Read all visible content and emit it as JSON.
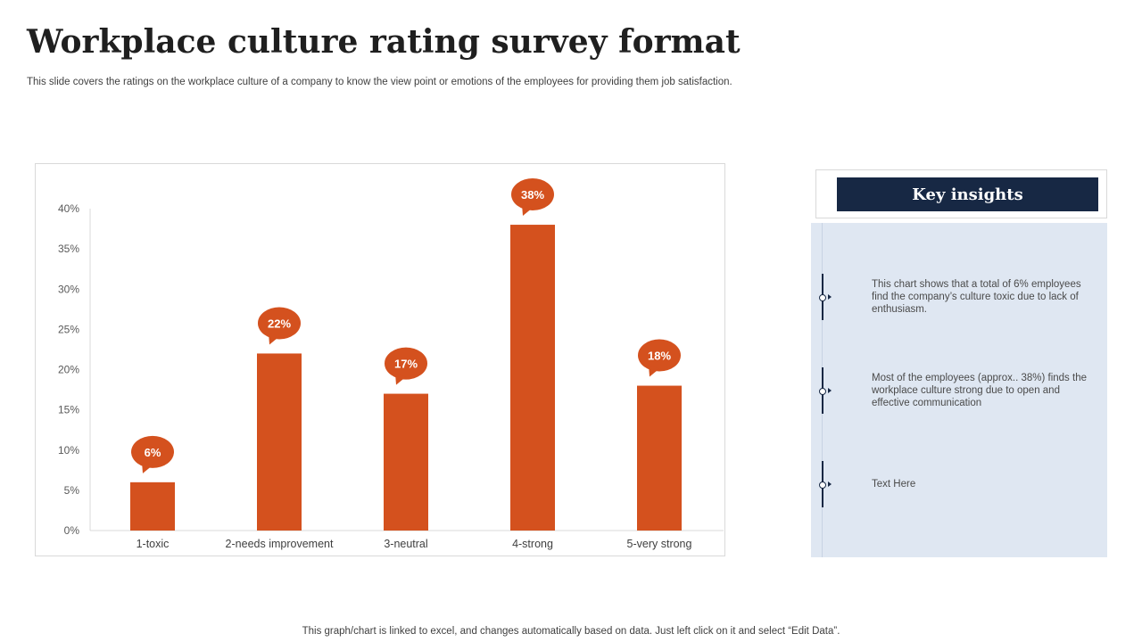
{
  "header": {
    "title": "Workplace culture rating survey format",
    "subtitle": "This slide covers the ratings on the workplace culture of a company to know the view point or emotions of the employees for providing them job satisfaction."
  },
  "chart_data": {
    "type": "bar",
    "title": "",
    "xlabel": "",
    "ylabel": "",
    "categories": [
      "1-toxic",
      "2-needs improvement",
      "3-neutral",
      "4-strong",
      "5-very strong"
    ],
    "values": [
      6,
      22,
      17,
      38,
      18
    ],
    "data_labels": [
      "6%",
      "22%",
      "17%",
      "38%",
      "18%"
    ],
    "yticks": [
      "0%",
      "5%",
      "10%",
      "15%",
      "20%",
      "25%",
      "30%",
      "35%",
      "40%"
    ],
    "ylim": [
      0,
      40
    ],
    "bar_color": "#d4511e",
    "grid": false
  },
  "insights": {
    "title": "Key insights",
    "items": [
      {
        "text": "This chart shows that a total of  6% employees find the company’s culture toxic due to lack of enthusiasm."
      },
      {
        "text": "Most of the employees (approx.. 38%) finds the workplace culture strong due to open and effective communication"
      },
      {
        "text": "Text Here"
      }
    ],
    "accent": "#172844",
    "panel_color": "#dfe7f2"
  },
  "footer": {
    "note": "This graph/chart is linked to excel,  and changes automatically based on data. Just left click on it and select “Edit Data”."
  }
}
